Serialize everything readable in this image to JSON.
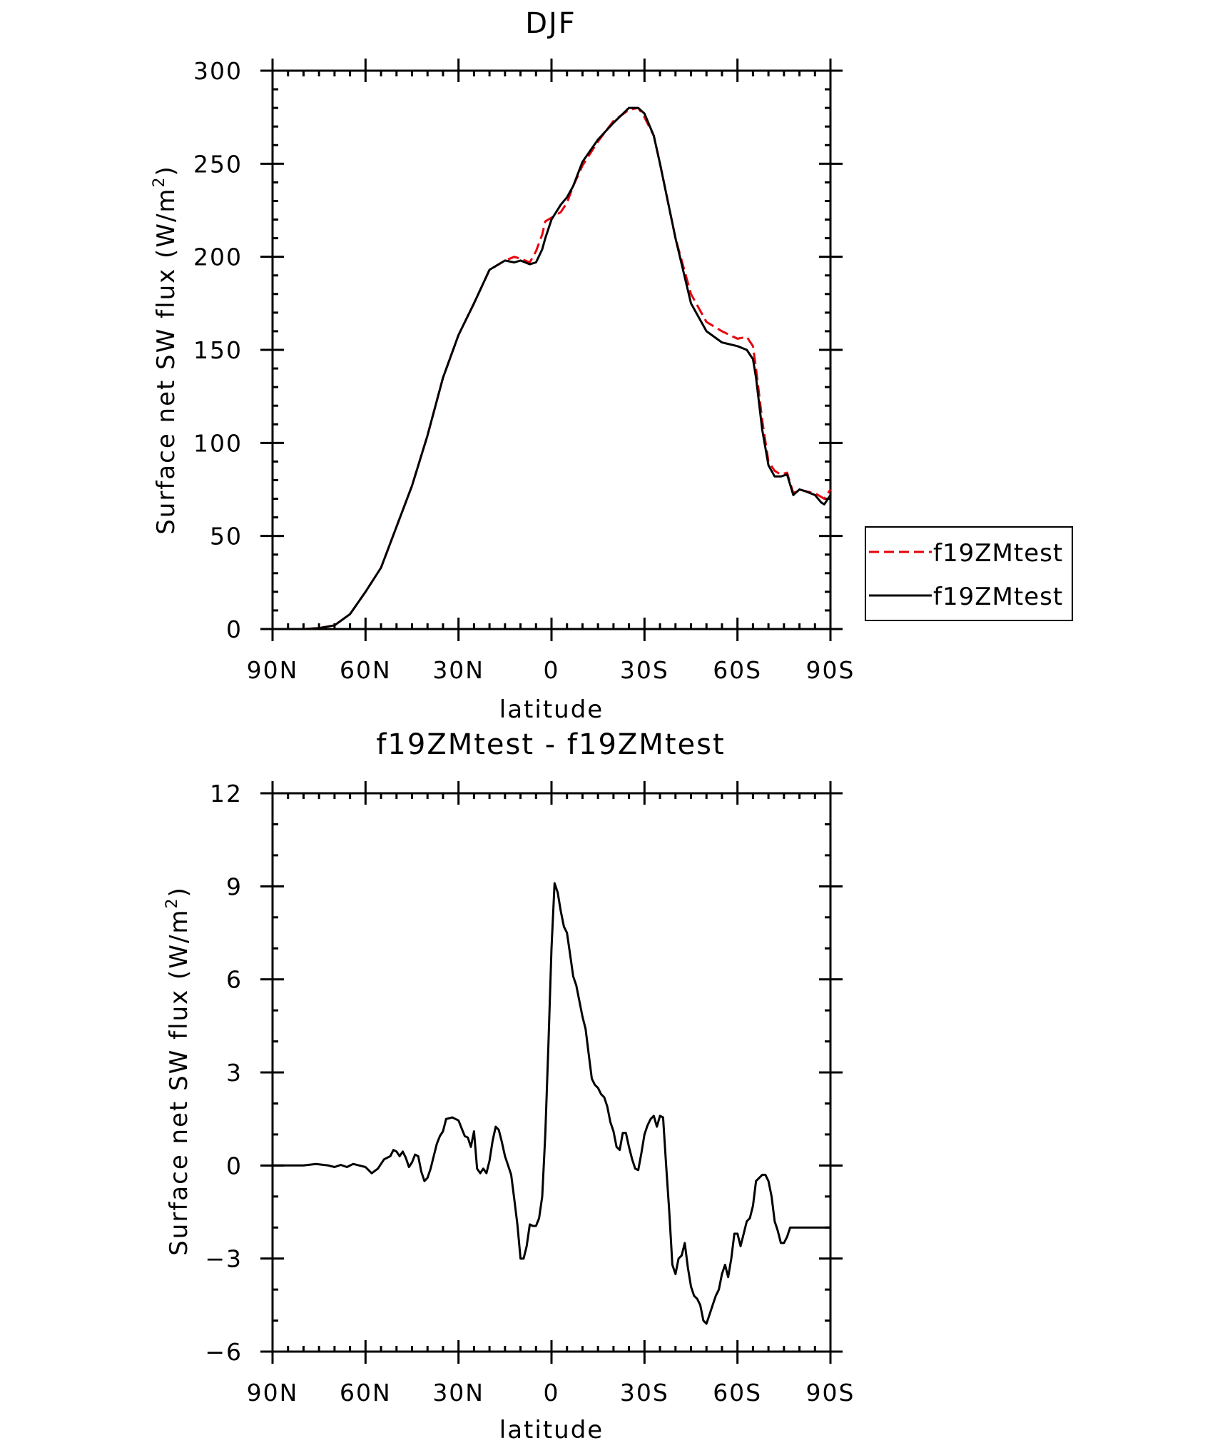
{
  "chart_data": [
    {
      "type": "line",
      "title": "DJF",
      "xlabel": "latitude",
      "ylabel": "Surface net SW flux (W/m",
      "ylabel_sup": "2",
      "ylabel_close": ")",
      "xlim": [
        90,
        -90
      ],
      "ylim": [
        0,
        300
      ],
      "xticks": [
        90,
        60,
        30,
        0,
        -30,
        -60,
        -90
      ],
      "xtick_labels": [
        "90N",
        "60N",
        "30N",
        "0",
        "30S",
        "60S",
        "90S"
      ],
      "yticks": [
        0,
        50,
        100,
        150,
        200,
        250,
        300
      ],
      "ytick_labels": [
        "0",
        "50",
        "100",
        "150",
        "200",
        "250",
        "300"
      ],
      "grid": false,
      "legend_position": "outside-right",
      "series": [
        {
          "name": "f19ZMtest",
          "color": "#e8000b",
          "dash": "dashed",
          "x": [
            90,
            80,
            75,
            70,
            65,
            60,
            55,
            50,
            45,
            40,
            35,
            30,
            25,
            20,
            15,
            12,
            10,
            7,
            5,
            3,
            2,
            0,
            -3,
            -5,
            -7,
            -10,
            -15,
            -20,
            -25,
            -28,
            -30,
            -33,
            -35,
            -40,
            -45,
            -50,
            -55,
            -60,
            -63,
            -65,
            -66,
            -68,
            -70,
            -72,
            -74,
            -76,
            -78,
            -80,
            -82,
            -85,
            -87,
            -88,
            -90
          ],
          "y": [
            0,
            0,
            0.5,
            2,
            8,
            20,
            33,
            55,
            77,
            104,
            135,
            158,
            175,
            193,
            198,
            200,
            199,
            197,
            203,
            212,
            219,
            221,
            224,
            229,
            238,
            249,
            262,
            273,
            279,
            280,
            275,
            265,
            250,
            210,
            180,
            165,
            160,
            156,
            157,
            152,
            140,
            112,
            90,
            85,
            83,
            84,
            73,
            75,
            74,
            73,
            71,
            70,
            75
          ]
        },
        {
          "name": "f19ZMtest",
          "color": "#000000",
          "dash": "solid",
          "x": [
            90,
            80,
            75,
            70,
            65,
            60,
            55,
            50,
            45,
            40,
            35,
            30,
            25,
            20,
            15,
            12,
            10,
            7,
            5,
            3,
            2,
            0,
            -3,
            -5,
            -7,
            -10,
            -15,
            -20,
            -25,
            -28,
            -30,
            -33,
            -35,
            -40,
            -45,
            -50,
            -55,
            -60,
            -63,
            -65,
            -66,
            -68,
            -70,
            -72,
            -74,
            -76,
            -78,
            -80,
            -82,
            -85,
            -87,
            -88,
            -90
          ],
          "y": [
            0,
            0,
            0.5,
            2,
            8,
            20,
            33,
            55,
            77,
            104,
            135,
            158,
            175,
            193,
            198,
            197,
            198,
            196,
            197,
            204,
            210,
            220,
            228,
            232,
            238,
            251,
            263,
            272,
            280,
            280,
            277,
            265,
            250,
            210,
            175,
            160,
            154,
            152,
            150,
            145,
            135,
            107,
            88,
            82,
            82,
            83,
            72,
            75,
            74,
            72,
            68,
            67,
            72
          ]
        }
      ]
    },
    {
      "type": "line",
      "title": "f19ZMtest - f19ZMtest",
      "xlabel": "latitude",
      "ylabel": "Surface net SW flux (W/m",
      "ylabel_sup": "2",
      "ylabel_close": ")",
      "xlim": [
        90,
        -90
      ],
      "ylim": [
        -6,
        12
      ],
      "xticks": [
        90,
        60,
        30,
        0,
        -30,
        -60,
        -90
      ],
      "xtick_labels": [
        "90N",
        "60N",
        "30N",
        "0",
        "30S",
        "60S",
        "90S"
      ],
      "yticks": [
        -6,
        -3,
        0,
        3,
        6,
        9,
        12
      ],
      "ytick_labels": [
        "−6",
        "−3",
        "0",
        "3",
        "6",
        "9",
        "12"
      ],
      "grid": false,
      "series": [
        {
          "color": "#000000",
          "dash": "solid",
          "x": [
            90,
            80,
            76,
            72,
            70,
            68,
            66,
            64,
            62,
            60,
            58,
            56,
            54,
            52,
            51,
            50,
            49,
            48,
            47,
            46,
            45,
            44,
            43,
            42,
            41,
            40,
            39,
            38,
            37,
            36,
            35,
            34,
            32,
            30,
            29,
            28,
            27,
            26,
            25,
            24,
            23,
            22,
            21,
            20,
            19,
            18,
            17,
            16,
            15,
            14,
            13,
            12,
            11,
            10,
            9,
            8,
            7,
            6,
            5,
            4,
            3,
            2,
            1,
            0,
            -1,
            -2,
            -3,
            -4,
            -5,
            -6,
            -7,
            -8,
            -9,
            -10,
            -11,
            -12,
            -13,
            -14,
            -15,
            -16,
            -17,
            -18,
            -19,
            -20,
            -21,
            -22,
            -23,
            -24,
            -25,
            -26,
            -27,
            -28,
            -29,
            -30,
            -31,
            -32,
            -33,
            -34,
            -35,
            -36,
            -37,
            -38,
            -39,
            -40,
            -41,
            -42,
            -43,
            -44,
            -45,
            -46,
            -47,
            -48,
            -49,
            -50,
            -51,
            -52,
            -53,
            -54,
            -55,
            -56,
            -57,
            -58,
            -59,
            -60,
            -61,
            -62,
            -63,
            -64,
            -65,
            -66,
            -67,
            -68,
            -69,
            -70,
            -71,
            -72,
            -73,
            -74,
            -75,
            -76,
            -77,
            -78,
            -79,
            -80,
            -81,
            -82,
            -83,
            -84,
            -85,
            -86,
            -87,
            -88,
            -89,
            -90
          ],
          "y": [
            0,
            0,
            0.05,
            0,
            -0.05,
            0.02,
            -0.05,
            0.05,
            0,
            -0.05,
            -0.25,
            -0.1,
            0.2,
            0.3,
            0.5,
            0.45,
            0.3,
            0.45,
            0.25,
            -0.05,
            0.1,
            0.35,
            0.3,
            -0.2,
            -0.5,
            -0.4,
            -0.1,
            0.3,
            0.7,
            0.95,
            1.1,
            1.5,
            1.55,
            1.45,
            1.2,
            0.95,
            0.9,
            0.6,
            1.1,
            -0.1,
            -0.25,
            -0.1,
            -0.25,
            0.15,
            0.8,
            1.25,
            1.15,
            0.75,
            0.3,
            0,
            -0.3,
            -1.1,
            -1.9,
            -3.0,
            -3.0,
            -2.6,
            -1.9,
            -1.95,
            -1.95,
            -1.7,
            -1.0,
            1.0,
            3.9,
            7.0,
            9.1,
            8.8,
            8.2,
            7.7,
            7.5,
            6.8,
            6.1,
            5.8,
            5.3,
            4.8,
            4.4,
            3.6,
            2.8,
            2.6,
            2.5,
            2.3,
            2.2,
            1.9,
            1.4,
            1.1,
            0.6,
            0.5,
            1.05,
            1.05,
            0.6,
            0.2,
            -0.1,
            -0.15,
            0.4,
            1.0,
            1.3,
            1.5,
            1.6,
            1.25,
            1.6,
            1.55,
            0,
            -1.5,
            -3.2,
            -3.5,
            -3.0,
            -2.9,
            -2.5,
            -3.3,
            -3.9,
            -4.2,
            -4.3,
            -4.5,
            -5.0,
            -5.1,
            -4.8,
            -4.5,
            -4.2,
            -4.0,
            -3.5,
            -3.2,
            -3.6,
            -3.0,
            -2.2,
            -2.2,
            -2.6,
            -2.2,
            -1.8,
            -1.7,
            -1.3,
            -0.5,
            -0.4,
            -0.3,
            -0.3,
            -0.5,
            -1.0,
            -1.8,
            -2.1,
            -2.5,
            -2.5,
            -2.3,
            -2.0,
            -2.0,
            -2.0,
            -2.0,
            -2.0,
            -2.0,
            -2.0,
            -2.0,
            -2.0,
            -2.0,
            -2.0,
            -2.0,
            -2.0,
            -2.0
          ]
        }
      ]
    }
  ]
}
